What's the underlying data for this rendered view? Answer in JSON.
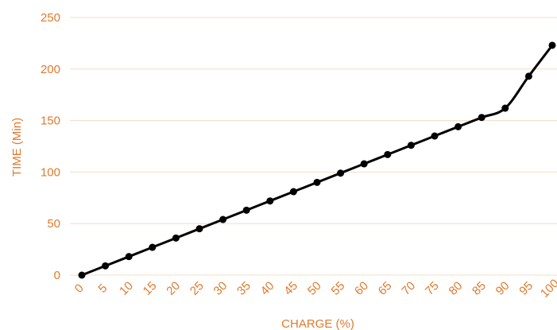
{
  "colors": {
    "axis_text": "#e07a2c",
    "grid": "#f6dcc6",
    "line": "#000000",
    "marker": "#000000"
  },
  "chart_data": {
    "type": "line",
    "title": "",
    "xlabel": "CHARGE (%)",
    "ylabel": "TIME (Min)",
    "categories": [
      "0",
      "5",
      "10",
      "15",
      "20",
      "25",
      "30",
      "35",
      "40",
      "45",
      "50",
      "55",
      "60",
      "65",
      "70",
      "75",
      "80",
      "85",
      "90",
      "95",
      "100"
    ],
    "series": [
      {
        "values": [
          0,
          9,
          18,
          27,
          36,
          45,
          54,
          63,
          72,
          81,
          90,
          99,
          108,
          117,
          126,
          135,
          144,
          153,
          162,
          193,
          223
        ]
      }
    ],
    "yticks": [
      0,
      50,
      100,
      150,
      200,
      250
    ],
    "ylim": [
      0,
      250
    ],
    "grid": "horizontal",
    "legend": "none"
  }
}
